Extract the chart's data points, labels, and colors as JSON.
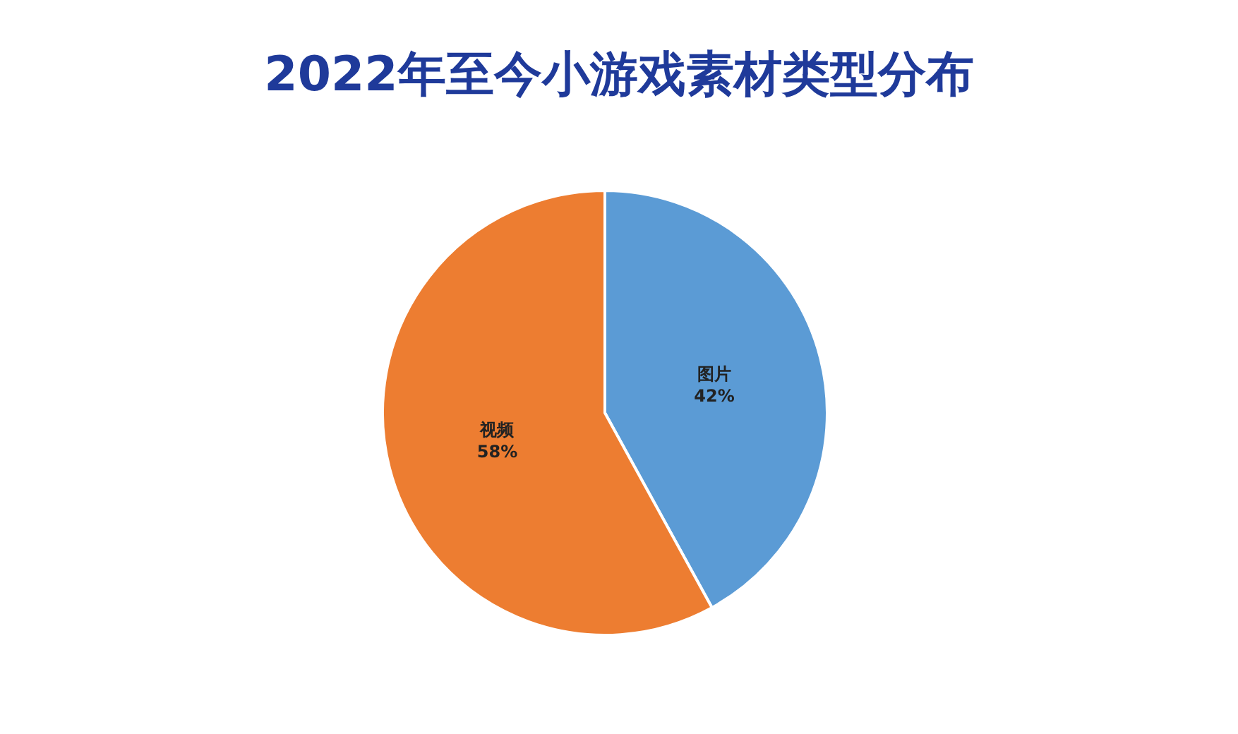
{
  "chart_data": {
    "type": "pie",
    "title": "2022年至今小游戏素材类型分布",
    "categories": [
      "图片",
      "视频"
    ],
    "values": [
      42,
      58
    ],
    "value_labels": [
      "42%",
      "58%"
    ],
    "colors": [
      "#5b9bd5",
      "#ed7d31"
    ],
    "legend": false
  }
}
